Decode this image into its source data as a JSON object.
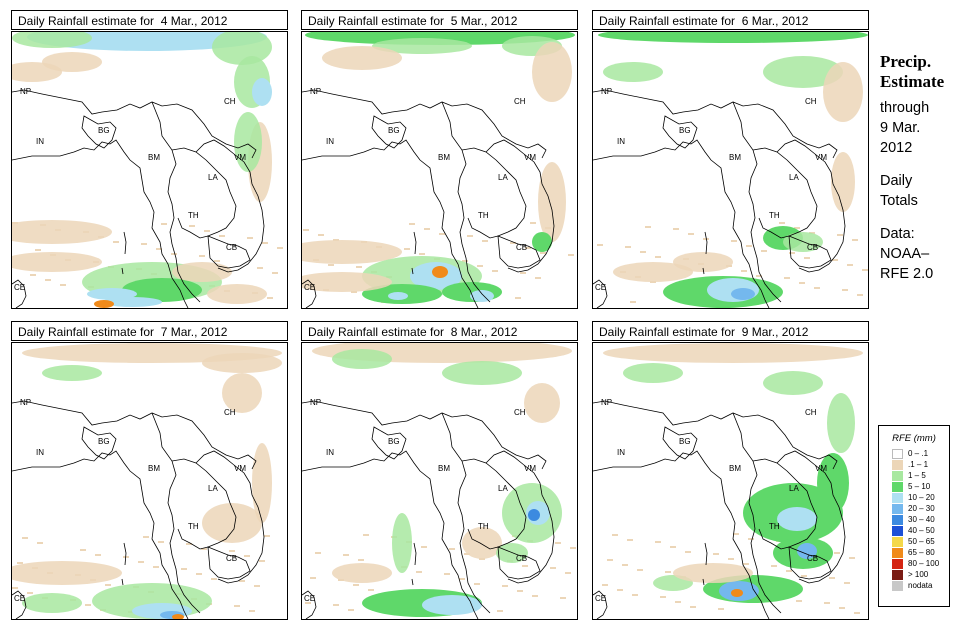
{
  "panels": [
    {
      "title": "Daily Rainfall estimate for  4 Mar., 2012"
    },
    {
      "title": "Daily Rainfall estimate for  5 Mar., 2012"
    },
    {
      "title": "Daily Rainfall estimate for  6 Mar., 2012"
    },
    {
      "title": "Daily Rainfall estimate for  7 Mar., 2012"
    },
    {
      "title": "Daily Rainfall estimate for  8 Mar., 2012"
    },
    {
      "title": "Daily Rainfall estimate for  9 Mar., 2012"
    }
  ],
  "country_labels": [
    "NP",
    "CH",
    "IN",
    "BG",
    "BM",
    "VM",
    "LA",
    "TH",
    "CB",
    "CE"
  ],
  "side": {
    "title_line1": "Precip.",
    "title_line2": "Estimate",
    "through": "through",
    "date_line1": "9 Mar.",
    "date_line2": "2012",
    "totals_line1": "Daily",
    "totals_line2": "Totals",
    "data_line1": "Data:",
    "data_line2": "NOAA–",
    "data_line3": "RFE 2.0"
  },
  "legend": {
    "title": "RFE (mm)",
    "items": [
      {
        "label": "0 – .1",
        "color": "#ffffff"
      },
      {
        "label": ".1 – 1",
        "color": "#ecd6b8"
      },
      {
        "label": "1 – 5",
        "color": "#a8e8a0"
      },
      {
        "label": "5 – 10",
        "color": "#5fd86a"
      },
      {
        "label": "10 – 20",
        "color": "#aee0f2"
      },
      {
        "label": "20 – 30",
        "color": "#74b8ee"
      },
      {
        "label": "30 – 40",
        "color": "#3c8ae0"
      },
      {
        "label": "40 – 50",
        "color": "#1c50d6"
      },
      {
        "label": "50 – 65",
        "color": "#f4d84a"
      },
      {
        "label": "65 – 80",
        "color": "#f08a1a"
      },
      {
        "label": "80 – 100",
        "color": "#d42412"
      },
      {
        "label": "> 100",
        "color": "#7a1c14"
      },
      {
        "label": "nodata",
        "color": "#c8c8c8"
      }
    ]
  }
}
